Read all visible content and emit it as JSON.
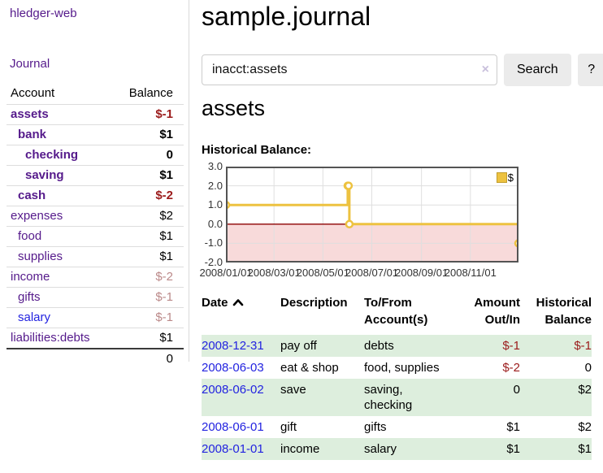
{
  "app": {
    "brand": "hledger-web",
    "nav": {
      "journal": "Journal"
    }
  },
  "sidebar": {
    "header": {
      "account": "Account",
      "balance": "Balance"
    },
    "accounts": [
      {
        "name": "assets",
        "depth": 0,
        "bold": true,
        "link_color": "purple",
        "balance": "$-1",
        "balance_style": "neg-strong"
      },
      {
        "name": "bank",
        "depth": 1,
        "bold": true,
        "link_color": "purple",
        "balance": "$1",
        "balance_style": "strong"
      },
      {
        "name": "checking",
        "depth": 2,
        "bold": true,
        "link_color": "purple",
        "balance": "0",
        "balance_style": "strong"
      },
      {
        "name": "saving",
        "depth": 2,
        "bold": true,
        "link_color": "purple",
        "balance": "$1",
        "balance_style": "strong"
      },
      {
        "name": "cash",
        "depth": 1,
        "bold": true,
        "link_color": "purple",
        "balance": "$-2",
        "balance_style": "neg-strong"
      },
      {
        "name": "expenses",
        "depth": 0,
        "bold": false,
        "link_color": "purple",
        "balance": "$2",
        "balance_style": "plain"
      },
      {
        "name": "food",
        "depth": 1,
        "bold": false,
        "link_color": "purple",
        "balance": "$1",
        "balance_style": "plain"
      },
      {
        "name": "supplies",
        "depth": 1,
        "bold": false,
        "link_color": "purple",
        "balance": "$1",
        "balance_style": "plain"
      },
      {
        "name": "income",
        "depth": 0,
        "bold": false,
        "link_color": "purple",
        "balance": "$-2",
        "balance_style": "neg-faded"
      },
      {
        "name": "gifts",
        "depth": 1,
        "bold": false,
        "link_color": "purple",
        "balance": "$-1",
        "balance_style": "neg-faded"
      },
      {
        "name": "salary",
        "depth": 1,
        "bold": false,
        "link_color": "blue",
        "balance": "$-1",
        "balance_style": "neg-faded"
      },
      {
        "name": "liabilities:debts",
        "depth": 0,
        "bold": false,
        "link_color": "purple",
        "balance": "$1",
        "balance_style": "plain"
      }
    ],
    "total": "0"
  },
  "main": {
    "title": "sample.journal",
    "search": {
      "value": "inacct:assets",
      "clear_icon": "×",
      "search_button": "Search",
      "help_button": "?"
    },
    "account_heading": "assets",
    "section_label": "Historical Balance:"
  },
  "chart_data": {
    "type": "line",
    "line_style": "step",
    "title": "Historical Balance",
    "series": [
      {
        "name": "$",
        "points": [
          {
            "x": "2008-01-01",
            "y": 1
          },
          {
            "x": "2008-06-01",
            "y": 2
          },
          {
            "x": "2008-06-02",
            "y": 2
          },
          {
            "x": "2008-06-03",
            "y": 0
          },
          {
            "x": "2008-12-31",
            "y": -1
          }
        ]
      }
    ],
    "x_ticks": [
      "2008/01/01",
      "2008/03/01",
      "2008/05/01",
      "2008/07/01",
      "2008/09/01",
      "2008/11/01"
    ],
    "y_ticks": [
      3.0,
      2.0,
      1.0,
      0.0,
      -1.0,
      -2.0
    ],
    "ylim": [
      -2,
      3
    ],
    "xlim": [
      "2008-01-01",
      "2008-12-31"
    ],
    "legend": {
      "label": "$",
      "position": "top-right"
    },
    "negative_region_shaded": true,
    "grid": true
  },
  "register": {
    "headers": {
      "date": "Date",
      "description": "Description",
      "accounts": "To/From Account(s)",
      "amount": "Amount Out/In",
      "balance": "Historical Balance"
    },
    "sort": {
      "column": "date",
      "direction": "ascending"
    },
    "rows": [
      {
        "date": "2008-12-31",
        "description": "pay off",
        "accounts": "debts",
        "amount": "$-1",
        "amount_negative": true,
        "balance": "$-1",
        "balance_negative": true,
        "shaded": true
      },
      {
        "date": "2008-06-03",
        "description": "eat & shop",
        "accounts": "food, supplies",
        "amount": "$-2",
        "amount_negative": true,
        "balance": "0",
        "balance_negative": false,
        "shaded": false
      },
      {
        "date": "2008-06-02",
        "description": "save",
        "accounts": "saving, checking",
        "amount": "0",
        "amount_negative": false,
        "balance": "$2",
        "balance_negative": false,
        "shaded": true
      },
      {
        "date": "2008-06-01",
        "description": "gift",
        "accounts": "gifts",
        "amount": "$1",
        "amount_negative": false,
        "balance": "$2",
        "balance_negative": false,
        "shaded": false
      },
      {
        "date": "2008-01-01",
        "description": "income",
        "accounts": "salary",
        "amount": "$1",
        "amount_negative": false,
        "balance": "$1",
        "balance_negative": false,
        "shaded": true
      }
    ]
  },
  "colors": {
    "link_purple": "#551a8b",
    "link_blue": "#2323e0",
    "negative_strong": "#9b1b1b",
    "negative_faded": "#bb8989",
    "row_shade_green": "#ddeedd",
    "chart_line": "#edc240",
    "chart_marker_fill": "#ffffff",
    "chart_negative_fill": "#f8dada",
    "chart_zero_line": "#8b0000",
    "chart_grid": "#dfdfdf",
    "chart_border": "#545454",
    "button_bg": "#ebebeb"
  }
}
